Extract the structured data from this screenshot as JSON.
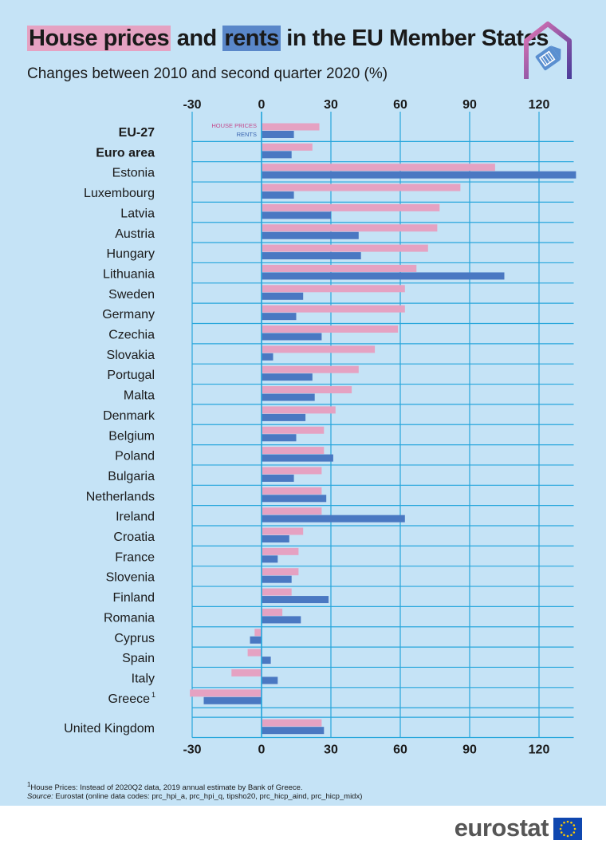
{
  "title": {
    "part1": "House prices",
    "part2": " and ",
    "part3": "rents",
    "part4": " in the EU Member States"
  },
  "subtitle": "Changes between 2010 and second quarter 2020 (%)",
  "footnote": {
    "mark": "1",
    "text": "House Prices: Instead of 2020Q2 data, 2019 annual estimate by Bank of Greece."
  },
  "source": {
    "label": "Source:",
    "text": " Eurostat (online data codes: prc_hpi_a, prc_hpi_q, tipsho20, prc_hicp_aind, prc_hicp_midx)"
  },
  "brand": "eurostat",
  "colors": {
    "house_prices": "#e5a2c2",
    "rents": "#4a78c2",
    "background": "#c5e3f6",
    "gridline": "#27a6dc"
  },
  "chart_data": {
    "type": "bar",
    "orientation": "horizontal",
    "title": "House prices and rents in the EU Member States",
    "subtitle": "Changes between 2010 and second quarter 2020 (%)",
    "xlim": [
      -30,
      135
    ],
    "ticks": [
      -30,
      0,
      30,
      60,
      90,
      120
    ],
    "tick_labels": [
      "-30",
      "0",
      "30",
      "60",
      "90",
      "120"
    ],
    "legend_placement": "top-left of plot, beside first bar pair",
    "categories": [
      "EU-27",
      "Euro area",
      "Estonia",
      "Luxembourg",
      "Latvia",
      "Austria",
      "Hungary",
      "Lithuania",
      "Sweden",
      "Germany",
      "Czechia",
      "Slovakia",
      "Portugal",
      "Malta",
      "Denmark",
      "Belgium",
      "Poland",
      "Bulgaria",
      "Netherlands",
      "Ireland",
      "Croatia",
      "France",
      "Slovenia",
      "Finland",
      "Romania",
      "Cyprus",
      "Spain",
      "Italy",
      "Greece",
      "United Kingdom"
    ],
    "bold_categories": [
      "EU-27",
      "Euro area"
    ],
    "footnoted_categories": [
      "Greece"
    ],
    "footnote_mark": "1",
    "series": [
      {
        "name": "HOUSE PRICES",
        "values": [
          25,
          22,
          101,
          86,
          77,
          76,
          72,
          67,
          62,
          62,
          59,
          49,
          42,
          39,
          32,
          27,
          27,
          26,
          26,
          26,
          18,
          16,
          16,
          13,
          9,
          -3,
          -6,
          -13,
          -31,
          26
        ]
      },
      {
        "name": "RENTS",
        "values": [
          14,
          13,
          136,
          14,
          30,
          42,
          43,
          105,
          18,
          15,
          26,
          5,
          22,
          23,
          19,
          15,
          31,
          14,
          28,
          62,
          12,
          7,
          13,
          29,
          17,
          -5,
          4,
          7,
          -25,
          27
        ]
      }
    ]
  }
}
